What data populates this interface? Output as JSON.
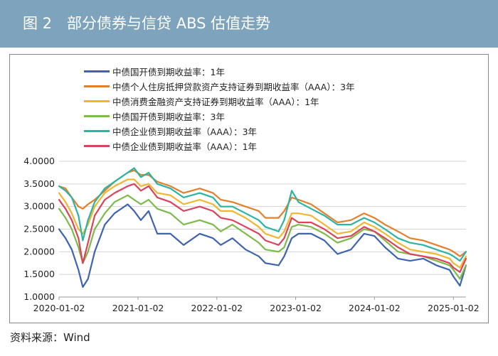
{
  "figure_title": "图 2　部分债券与信贷 ABS 估值走势",
  "source": "资料来源：Wind",
  "colors": {
    "header_bg": "#7ea3bd",
    "grid": "#d4d4d4"
  },
  "chart_data": {
    "type": "line",
    "title": "图 2　部分债券与信贷 ABS 估值走势",
    "xlabel": "",
    "ylabel": "",
    "x_range": [
      "2020-01-02",
      "2025-03-01"
    ],
    "xticks": [
      "2020-01-02",
      "2021-01-02",
      "2022-01-02",
      "2023-01-02",
      "2024-01-02",
      "2025-01-02"
    ],
    "ylim": [
      1.0,
      4.0
    ],
    "yticks": [
      "1.0000",
      "1.5000",
      "2.0000",
      "2.5000",
      "3.0000",
      "3.5000",
      "4.0000"
    ],
    "grid": "horizontal",
    "legend_position": "top",
    "x": [
      "2020-01-02",
      "2020-02-01",
      "2020-03-01",
      "2020-04-01",
      "2020-04-21",
      "2020-05-15",
      "2020-06-15",
      "2020-08-01",
      "2020-09-15",
      "2020-11-15",
      "2020-12-15",
      "2021-01-15",
      "2021-02-20",
      "2021-04-01",
      "2021-06-01",
      "2021-08-01",
      "2021-10-15",
      "2021-12-15",
      "2022-01-20",
      "2022-03-15",
      "2022-05-15",
      "2022-07-15",
      "2022-08-15",
      "2022-10-15",
      "2022-11-10",
      "2022-12-15",
      "2023-01-15",
      "2023-03-15",
      "2023-05-15",
      "2023-07-15",
      "2023-09-15",
      "2023-11-15",
      "2024-01-02",
      "2024-02-20",
      "2024-04-20",
      "2024-06-15",
      "2024-08-15",
      "2024-10-15",
      "2024-12-15",
      "2025-01-02",
      "2025-02-01",
      "2025-03-01"
    ],
    "series": [
      {
        "name": "中债国开债到期收益率：1年",
        "color": "#3f64ad",
        "values": [
          2.5,
          2.3,
          2.05,
          1.6,
          1.22,
          1.4,
          2.0,
          2.6,
          2.85,
          3.05,
          2.9,
          2.7,
          2.9,
          2.4,
          2.4,
          2.15,
          2.4,
          2.3,
          2.15,
          2.3,
          2.05,
          1.9,
          1.75,
          1.7,
          1.9,
          2.3,
          2.4,
          2.4,
          2.25,
          1.95,
          2.05,
          2.4,
          2.35,
          2.1,
          1.85,
          1.8,
          1.85,
          1.7,
          1.6,
          1.45,
          1.25,
          1.7
        ]
      },
      {
        "name": "中债个人住房抵押贷款资产支持证券到期收益率（AAA）：3年",
        "color": "#e57f2b",
        "values": [
          3.45,
          3.4,
          3.2,
          3.0,
          2.95,
          3.05,
          3.15,
          3.35,
          3.55,
          3.75,
          3.8,
          3.7,
          3.7,
          3.55,
          3.45,
          3.3,
          3.4,
          3.3,
          3.15,
          3.1,
          3.0,
          2.9,
          2.75,
          2.75,
          2.9,
          3.2,
          3.15,
          3.05,
          2.85,
          2.65,
          2.7,
          2.85,
          2.75,
          2.6,
          2.45,
          2.3,
          2.25,
          2.15,
          2.05,
          2.0,
          1.9,
          2.0
        ]
      },
      {
        "name": "中债消费金融资产支持证券到期收益率（AAA）：1年",
        "color": "#f0b62f",
        "values": [
          3.3,
          3.1,
          2.85,
          2.5,
          2.4,
          2.6,
          3.0,
          3.3,
          3.45,
          3.6,
          3.6,
          3.45,
          3.5,
          3.3,
          3.25,
          3.05,
          3.15,
          3.05,
          2.9,
          2.9,
          2.75,
          2.55,
          2.4,
          2.3,
          2.45,
          2.85,
          2.85,
          2.8,
          2.6,
          2.4,
          2.45,
          2.65,
          2.55,
          2.4,
          2.2,
          2.05,
          2.0,
          1.95,
          1.85,
          1.75,
          1.65,
          1.9
        ]
      },
      {
        "name": "中债国开债到期收益率：3年",
        "color": "#7cba4a",
        "values": [
          2.95,
          2.75,
          2.5,
          2.1,
          1.75,
          2.0,
          2.5,
          2.85,
          3.1,
          3.25,
          3.15,
          3.05,
          3.15,
          2.95,
          2.85,
          2.6,
          2.7,
          2.6,
          2.45,
          2.6,
          2.4,
          2.2,
          2.05,
          2.0,
          2.1,
          2.55,
          2.6,
          2.55,
          2.4,
          2.2,
          2.3,
          2.5,
          2.45,
          2.25,
          2.0,
          1.95,
          1.9,
          1.8,
          1.7,
          1.6,
          1.4,
          1.7
        ]
      },
      {
        "name": "中债企业债到期收益率（AAA）：3年",
        "color": "#2bb3a3",
        "values": [
          3.45,
          3.35,
          3.2,
          2.8,
          2.25,
          2.7,
          3.1,
          3.4,
          3.55,
          3.75,
          3.85,
          3.65,
          3.75,
          3.5,
          3.4,
          3.2,
          3.3,
          3.2,
          3.0,
          3.0,
          2.85,
          2.7,
          2.55,
          2.45,
          2.7,
          3.35,
          3.1,
          2.95,
          2.8,
          2.6,
          2.6,
          2.75,
          2.65,
          2.5,
          2.3,
          2.2,
          2.15,
          2.05,
          1.95,
          1.9,
          1.8,
          2.0
        ]
      },
      {
        "name": "中债企业债到期收益率（AAA）：1年",
        "color": "#d9435c",
        "values": [
          3.15,
          2.95,
          2.7,
          2.3,
          1.75,
          2.2,
          2.8,
          3.15,
          3.3,
          3.45,
          3.5,
          3.35,
          3.45,
          3.2,
          3.1,
          2.9,
          3.0,
          2.9,
          2.75,
          2.7,
          2.55,
          2.4,
          2.25,
          2.15,
          2.3,
          2.75,
          2.65,
          2.65,
          2.5,
          2.3,
          2.35,
          2.55,
          2.45,
          2.3,
          2.1,
          1.95,
          1.9,
          1.85,
          1.75,
          1.65,
          1.55,
          1.85
        ]
      }
    ]
  }
}
